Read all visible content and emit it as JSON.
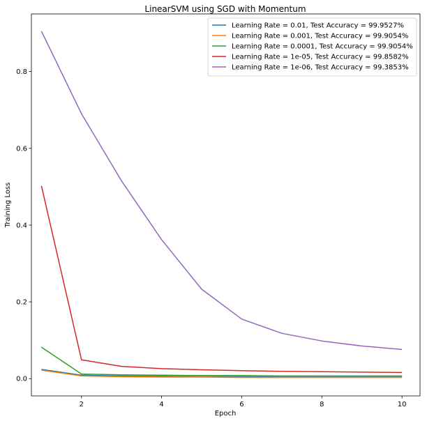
{
  "chart_data": {
    "type": "line",
    "title": "LinearSVM using SGD with Momentum",
    "xlabel": "Epoch",
    "ylabel": "Training Loss",
    "xlim": [
      0.75,
      10.45
    ],
    "ylim": [
      -0.045,
      0.95
    ],
    "xticks": [
      2,
      4,
      6,
      8,
      10
    ],
    "yticks": [
      0.0,
      0.2,
      0.4,
      0.6,
      0.8
    ],
    "ytick_labels": [
      "0.0",
      "0.2",
      "0.4",
      "0.6",
      "0.8"
    ],
    "grid": false,
    "legend_position": "top-right",
    "x": [
      1,
      2,
      3,
      4,
      5,
      6,
      7,
      8,
      9,
      10
    ],
    "series": [
      {
        "name": "Learning Rate = 0.01, Test Accuracy = 99.9527%",
        "color": "#1f77b4",
        "values": [
          0.024,
          0.009,
          0.007,
          0.006,
          0.005,
          0.005,
          0.004,
          0.004,
          0.004,
          0.004
        ]
      },
      {
        "name": "Learning Rate = 0.001, Test Accuracy = 99.9054%",
        "color": "#ff7f0e",
        "values": [
          0.022,
          0.007,
          0.005,
          0.004,
          0.004,
          0.003,
          0.003,
          0.003,
          0.003,
          0.003
        ]
      },
      {
        "name": "Learning Rate = 0.0001, Test Accuracy = 99.9054%",
        "color": "#2ca02c",
        "values": [
          0.082,
          0.012,
          0.01,
          0.009,
          0.008,
          0.008,
          0.007,
          0.007,
          0.007,
          0.007
        ]
      },
      {
        "name": "Learning Rate = 1e-05, Test Accuracy = 99.8582%",
        "color": "#d62728",
        "values": [
          0.502,
          0.049,
          0.032,
          0.026,
          0.023,
          0.021,
          0.019,
          0.018,
          0.017,
          0.016
        ]
      },
      {
        "name": "Learning Rate = 1e-06, Test Accuracy = 99.3853%",
        "color": "#9467bd",
        "values": [
          0.905,
          0.69,
          0.515,
          0.362,
          0.233,
          0.155,
          0.118,
          0.098,
          0.085,
          0.076
        ]
      }
    ]
  }
}
